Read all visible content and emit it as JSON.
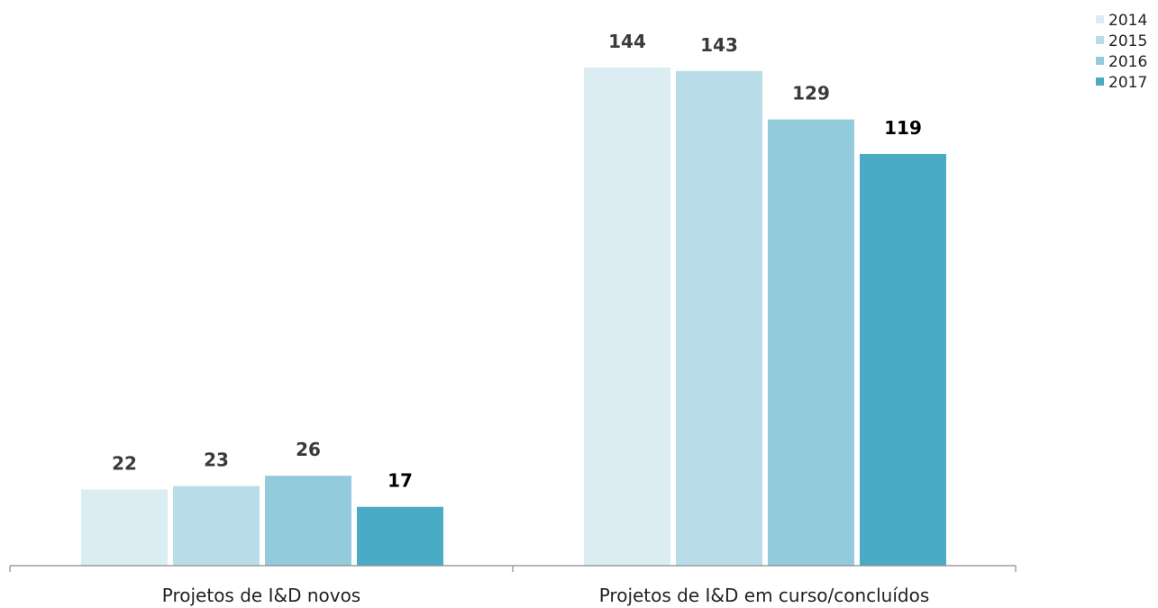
{
  "chart_data": {
    "type": "bar",
    "categories": [
      "Projetos de I&D novos",
      "Projetos de I&D em curso/concluídos"
    ],
    "series": [
      {
        "name": "2014",
        "values": [
          22,
          144
        ],
        "color": "#dbedf3"
      },
      {
        "name": "2015",
        "values": [
          23,
          143
        ],
        "color": "#b9dde8"
      },
      {
        "name": "2016",
        "values": [
          26,
          129
        ],
        "color": "#94cbdc"
      },
      {
        "name": "2017",
        "values": [
          17,
          119
        ],
        "color": "#4aacc4"
      }
    ],
    "title": "",
    "xlabel": "",
    "ylabel": "",
    "ylim": [
      0,
      160
    ],
    "grid": false,
    "legend": "top-right",
    "label_colors": {
      "default": "#3a3a3a",
      "last": "#000000"
    },
    "axis_color": "#8a8a8a"
  }
}
